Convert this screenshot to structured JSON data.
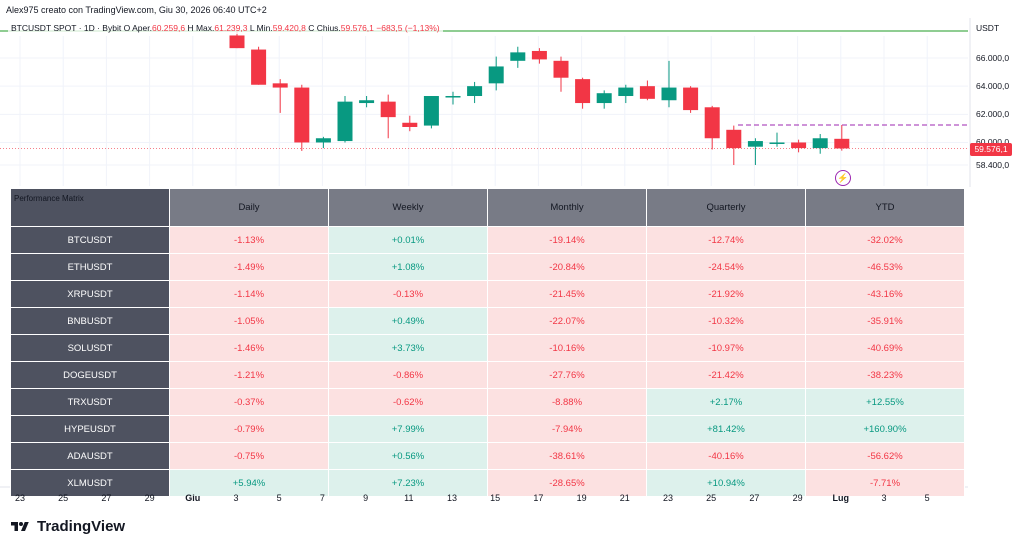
{
  "publisher": "Alex975 creato con TradingView.com, Giu 30, 2026 06:40 UTC+2",
  "legend": {
    "symbol": "BTCUSDT SPOT · 1D · Bybit",
    "open_label": "O",
    "open_name": "Aper.",
    "open": "60.259,6",
    "high_label": "H",
    "high_name": "Max.",
    "high": "61.239,3",
    "low_label": "L",
    "low_name": "Min.",
    "low": "59.420,8",
    "close_label": "C",
    "close_name": "Chius.",
    "close": "59.576,1",
    "change": "−683,5 (−1,13%)"
  },
  "price_axis": {
    "currency": "USDT",
    "labels": [
      "66.000,0",
      "64.000,0",
      "62.000,0",
      "60.000,0",
      "58.400,0"
    ],
    "last_price": "59.576,1"
  },
  "time_axis": [
    {
      "label": "23",
      "bold": false
    },
    {
      "label": "25",
      "bold": false
    },
    {
      "label": "27",
      "bold": false
    },
    {
      "label": "29",
      "bold": false
    },
    {
      "label": "Giu",
      "bold": true
    },
    {
      "label": "3",
      "bold": false
    },
    {
      "label": "5",
      "bold": false
    },
    {
      "label": "7",
      "bold": false
    },
    {
      "label": "9",
      "bold": false
    },
    {
      "label": "11",
      "bold": false
    },
    {
      "label": "13",
      "bold": false
    },
    {
      "label": "15",
      "bold": false
    },
    {
      "label": "17",
      "bold": false
    },
    {
      "label": "19",
      "bold": false
    },
    {
      "label": "21",
      "bold": false
    },
    {
      "label": "23",
      "bold": false
    },
    {
      "label": "25",
      "bold": false
    },
    {
      "label": "27",
      "bold": false
    },
    {
      "label": "29",
      "bold": false
    },
    {
      "label": "Lug",
      "bold": true
    },
    {
      "label": "3",
      "bold": false
    },
    {
      "label": "5",
      "bold": false
    }
  ],
  "candles": [
    {
      "o": 67600,
      "h": 67900,
      "l": 66700,
      "c": 66700
    },
    {
      "o": 66600,
      "h": 66800,
      "l": 64100,
      "c": 64100
    },
    {
      "o": 64200,
      "h": 64500,
      "l": 62100,
      "c": 63900
    },
    {
      "o": 63900,
      "h": 64100,
      "l": 59400,
      "c": 60000
    },
    {
      "o": 60000,
      "h": 60400,
      "l": 59600,
      "c": 60300
    },
    {
      "o": 60100,
      "h": 63300,
      "l": 60000,
      "c": 62900
    },
    {
      "o": 62800,
      "h": 63300,
      "l": 62500,
      "c": 63000
    },
    {
      "o": 62900,
      "h": 63400,
      "l": 60300,
      "c": 61800
    },
    {
      "o": 61400,
      "h": 61900,
      "l": 60800,
      "c": 61100
    },
    {
      "o": 61200,
      "h": 63300,
      "l": 61000,
      "c": 63300
    },
    {
      "o": 63300,
      "h": 63600,
      "l": 62700,
      "c": 63300
    },
    {
      "o": 63300,
      "h": 64300,
      "l": 62800,
      "c": 64000
    },
    {
      "o": 64200,
      "h": 66100,
      "l": 63700,
      "c": 65400
    },
    {
      "o": 65800,
      "h": 66800,
      "l": 65300,
      "c": 66400
    },
    {
      "o": 66500,
      "h": 66700,
      "l": 65600,
      "c": 65900
    },
    {
      "o": 65800,
      "h": 66100,
      "l": 63600,
      "c": 64600
    },
    {
      "o": 64500,
      "h": 64600,
      "l": 62400,
      "c": 62800
    },
    {
      "o": 62800,
      "h": 63700,
      "l": 62400,
      "c": 63500
    },
    {
      "o": 63300,
      "h": 64100,
      "l": 62800,
      "c": 63900
    },
    {
      "o": 64000,
      "h": 64400,
      "l": 63000,
      "c": 63100
    },
    {
      "o": 63000,
      "h": 65800,
      "l": 62500,
      "c": 63900
    },
    {
      "o": 63900,
      "h": 64000,
      "l": 62100,
      "c": 62300
    },
    {
      "o": 62500,
      "h": 62600,
      "l": 59500,
      "c": 60300
    },
    {
      "o": 60900,
      "h": 61200,
      "l": 58400,
      "c": 59600
    },
    {
      "o": 59700,
      "h": 60300,
      "l": 58400,
      "c": 60100
    },
    {
      "o": 60000,
      "h": 60700,
      "l": 59700,
      "c": 60000
    },
    {
      "o": 60000,
      "h": 60200,
      "l": 59300,
      "c": 59600
    },
    {
      "o": 59600,
      "h": 60600,
      "l": 59200,
      "c": 60300
    },
    {
      "o": 60260,
      "h": 61240,
      "l": 59420,
      "c": 59576
    }
  ],
  "performance_matrix": {
    "title": "Performance Matrix",
    "columns": [
      "Daily",
      "Weekly",
      "Monthly",
      "Quarterly",
      "YTD"
    ],
    "rows": [
      {
        "symbol": "BTCUSDT",
        "values": [
          "-1.13%",
          "+0.01%",
          "-19.14%",
          "-12.74%",
          "-32.02%"
        ]
      },
      {
        "symbol": "ETHUSDT",
        "values": [
          "-1.49%",
          "+1.08%",
          "-20.84%",
          "-24.54%",
          "-46.53%"
        ]
      },
      {
        "symbol": "XRPUSDT",
        "values": [
          "-1.14%",
          "-0.13%",
          "-21.45%",
          "-21.92%",
          "-43.16%"
        ]
      },
      {
        "symbol": "BNBUSDT",
        "values": [
          "-1.05%",
          "+0.49%",
          "-22.07%",
          "-10.32%",
          "-35.91%"
        ]
      },
      {
        "symbol": "SOLUSDT",
        "values": [
          "-1.46%",
          "+3.73%",
          "-10.16%",
          "-10.97%",
          "-40.69%"
        ]
      },
      {
        "symbol": "DOGEUSDT",
        "values": [
          "-1.21%",
          "-0.86%",
          "-27.76%",
          "-21.42%",
          "-38.23%"
        ]
      },
      {
        "symbol": "TRXUSDT",
        "values": [
          "-0.37%",
          "-0.62%",
          "-8.88%",
          "+2.17%",
          "+12.55%"
        ]
      },
      {
        "symbol": "HYPEUSDT",
        "values": [
          "-0.79%",
          "+7.99%",
          "-7.94%",
          "+81.42%",
          "+160.90%"
        ]
      },
      {
        "symbol": "ADAUSDT",
        "values": [
          "-0.75%",
          "+0.56%",
          "-38.61%",
          "-40.16%",
          "-56.62%"
        ]
      },
      {
        "symbol": "XLMUSDT",
        "values": [
          "+5.94%",
          "+7.23%",
          "-28.65%",
          "+10.94%",
          "-7.71%"
        ]
      }
    ]
  },
  "colors": {
    "up": "#089981",
    "down": "#f23645",
    "header_bg": "#787b86",
    "symbol_bg": "#4e5260",
    "neg_bg": "#fce1e1",
    "pos_bg": "#ddf1ec",
    "top_line": "#4caf50",
    "dashed_line": "#9c27b0"
  },
  "brand": {
    "name": "TradingView"
  }
}
